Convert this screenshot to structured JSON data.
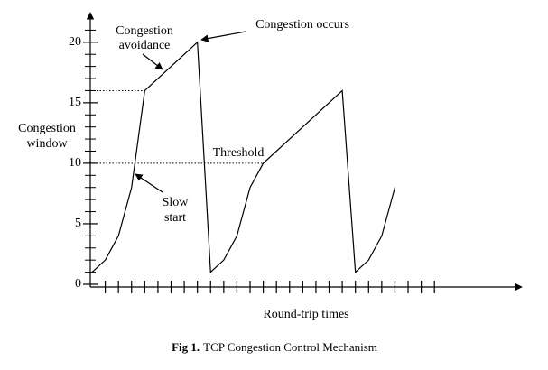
{
  "chart_data": {
    "type": "line",
    "ylabel": [
      "Congestion",
      "window"
    ],
    "xlabel": "Round-trip times",
    "caption": {
      "label": "Fig 1.",
      "text": "TCP Congestion Control Mechanism"
    },
    "x": [
      0,
      1,
      2,
      3,
      4,
      8,
      9,
      10,
      11,
      12,
      13,
      19,
      20,
      21,
      22,
      23
    ],
    "values": [
      1,
      2,
      4,
      8,
      16,
      20,
      1,
      2,
      4,
      8,
      10,
      16,
      1,
      2,
      4,
      8
    ],
    "color": "#000000",
    "xlim": [
      0,
      32.5
    ],
    "ylim": [
      0,
      22
    ],
    "yticks": [
      0,
      5,
      10,
      15,
      20
    ],
    "minor_yticks": [
      1,
      2,
      3,
      4,
      6,
      7,
      8,
      9,
      11,
      12,
      13,
      14,
      16,
      17,
      18,
      19,
      21
    ],
    "xticks": [
      1,
      2,
      3,
      4,
      5,
      6,
      7,
      8,
      9,
      10,
      11,
      12,
      13,
      14,
      15,
      16,
      17,
      18,
      19,
      20,
      21,
      22,
      23,
      24,
      25,
      26
    ],
    "reference_lines": [
      {
        "y": 16,
        "x_end": 4
      },
      {
        "y": 10,
        "x_end": 13
      }
    ],
    "annotations": {
      "avoidance": [
        "Congestion",
        "avoidance"
      ],
      "occurs": "Congestion occurs",
      "threshold": "Threshold",
      "slow_start": [
        "Slow",
        "start"
      ]
    }
  }
}
